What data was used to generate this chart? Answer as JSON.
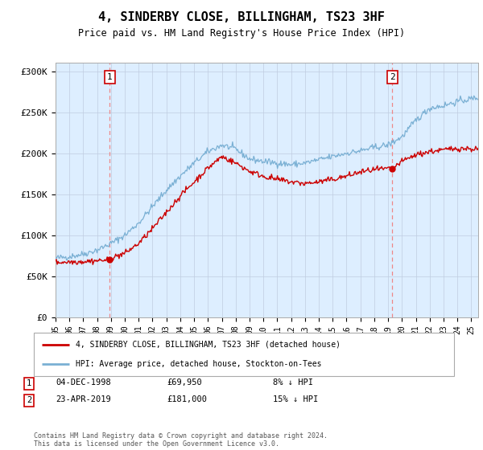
{
  "title": "4, SINDERBY CLOSE, BILLINGHAM, TS23 3HF",
  "subtitle": "Price paid vs. HM Land Registry's House Price Index (HPI)",
  "ylabel_ticks": [
    "£0",
    "£50K",
    "£100K",
    "£150K",
    "£200K",
    "£250K",
    "£300K"
  ],
  "ytick_values": [
    0,
    50000,
    100000,
    150000,
    200000,
    250000,
    300000
  ],
  "ylim": [
    0,
    310000
  ],
  "xlim_start": 1995.0,
  "xlim_end": 2025.5,
  "red_color": "#cc0000",
  "blue_color": "#7ab0d4",
  "dashed_color": "#ee8888",
  "background_color": "#ddeeff",
  "sale1_x": 1998.92,
  "sale1_y": 69950,
  "sale1_label": "1",
  "sale1_date": "04-DEC-1998",
  "sale1_price": "£69,950",
  "sale1_hpi": "8% ↓ HPI",
  "sale2_x": 2019.31,
  "sale2_y": 181000,
  "sale2_label": "2",
  "sale2_date": "23-APR-2019",
  "sale2_price": "£181,000",
  "sale2_hpi": "15% ↓ HPI",
  "legend_line1": "4, SINDERBY CLOSE, BILLINGHAM, TS23 3HF (detached house)",
  "legend_line2": "HPI: Average price, detached house, Stockton-on-Tees",
  "footer": "Contains HM Land Registry data © Crown copyright and database right 2024.\nThis data is licensed under the Open Government Licence v3.0."
}
